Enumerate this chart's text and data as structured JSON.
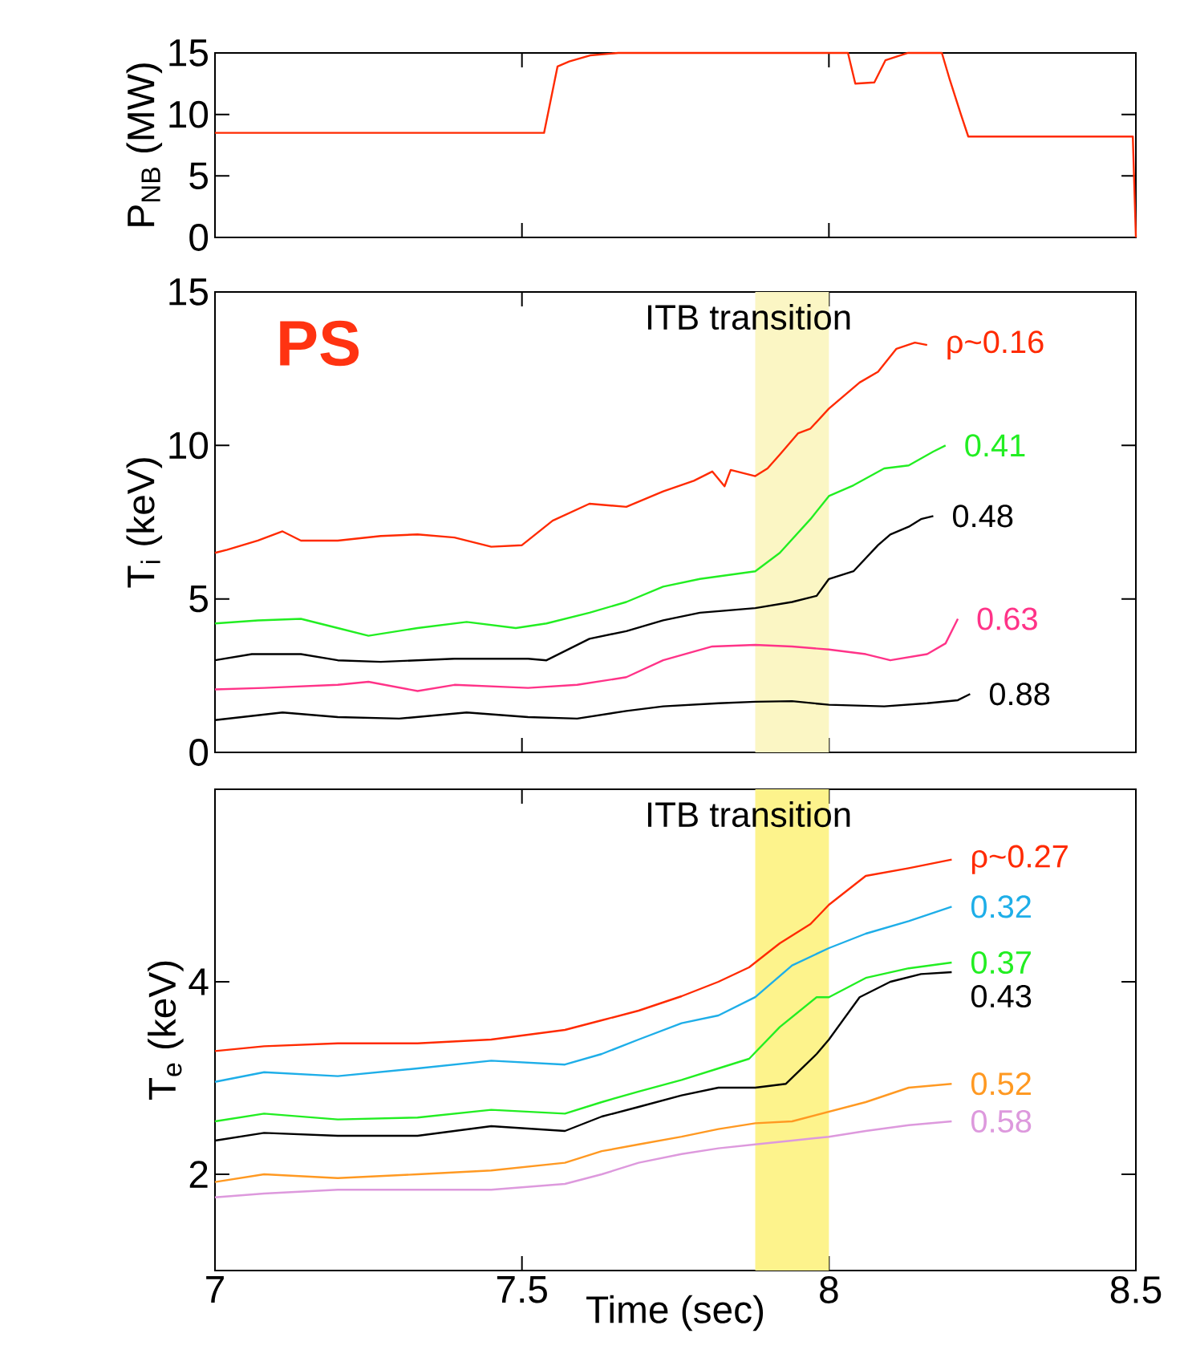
{
  "chart_data": [
    {
      "type": "line",
      "ylabel": "P$_{NB}$ (MW)",
      "xlim": [
        7,
        8.5
      ],
      "xticks": [
        7,
        7.5,
        8,
        8.5
      ],
      "ylim": [
        0,
        15
      ],
      "yticks": [
        0,
        5,
        10,
        15
      ],
      "tick_labels": "y",
      "series": [
        {
          "color": "#ff2a00",
          "x": [
            7.0,
            7.536,
            7.558,
            7.577,
            7.611,
            7.657,
            8.031,
            8.043,
            8.074,
            8.092,
            8.129,
            8.184,
            8.197,
            8.215,
            8.227,
            8.495,
            8.5
          ],
          "values": [
            8.5,
            8.5,
            13.9,
            14.3,
            14.8,
            15,
            15,
            12.5,
            12.6,
            14.4,
            15,
            15,
            12.8,
            10,
            8.2,
            8.2,
            0
          ]
        }
      ]
    },
    {
      "type": "line",
      "ylabel": "T$_{i}$ (keV)",
      "xlim": [
        7,
        8.5
      ],
      "xticks": [
        7,
        7.5,
        8,
        8.5
      ],
      "ylim": [
        0,
        15
      ],
      "yticks": [
        0,
        5,
        10,
        15
      ],
      "tick_labels": "y",
      "annotations": [
        "PS"
      ],
      "bands": [
        {
          "axis": "x",
          "from": 7.88,
          "to": 8.0,
          "label": "ITB transition",
          "color": "#fbf6c4"
        }
      ],
      "series": [
        {
          "name": "ρ~0.16",
          "color": "#ff2a00",
          "x": [
            7.0,
            7.02,
            7.07,
            7.11,
            7.14,
            7.2,
            7.27,
            7.33,
            7.39,
            7.45,
            7.5,
            7.55,
            7.61,
            7.67,
            7.73,
            7.78,
            7.81,
            7.83,
            7.84,
            7.88,
            7.9,
            7.92,
            7.95,
            7.97,
            8.0,
            8.05,
            8.08,
            8.11,
            8.14,
            8.16
          ],
          "values": [
            6.5,
            6.6,
            6.9,
            7.2,
            6.9,
            6.9,
            7.05,
            7.1,
            7.0,
            6.7,
            6.75,
            7.55,
            8.1,
            8.0,
            8.5,
            8.85,
            9.15,
            8.67,
            9.2,
            9.0,
            9.25,
            9.7,
            10.4,
            10.55,
            11.2,
            12.05,
            12.4,
            13.15,
            13.35,
            13.27
          ]
        },
        {
          "name": "0.41",
          "color": "#22ee22",
          "x": [
            7.0,
            7.07,
            7.14,
            7.2,
            7.25,
            7.33,
            7.41,
            7.49,
            7.54,
            7.61,
            7.67,
            7.73,
            7.79,
            7.88,
            7.92,
            7.97,
            8.0,
            8.04,
            8.09,
            8.13,
            8.17,
            8.19
          ],
          "values": [
            4.2,
            4.3,
            4.35,
            4.05,
            3.8,
            4.05,
            4.25,
            4.05,
            4.2,
            4.55,
            4.9,
            5.4,
            5.65,
            5.9,
            6.5,
            7.6,
            8.35,
            8.7,
            9.25,
            9.35,
            9.8,
            10.0
          ]
        },
        {
          "name": "0.48",
          "color": "#000000",
          "x": [
            7.0,
            7.06,
            7.14,
            7.2,
            7.27,
            7.39,
            7.51,
            7.54,
            7.61,
            7.67,
            7.73,
            7.79,
            7.88,
            7.94,
            7.98,
            8.0,
            8.04,
            8.08,
            8.1,
            8.13,
            8.15,
            8.17
          ],
          "values": [
            3.0,
            3.2,
            3.2,
            3.0,
            2.95,
            3.05,
            3.05,
            3.0,
            3.7,
            3.95,
            4.3,
            4.55,
            4.7,
            4.9,
            5.1,
            5.65,
            5.9,
            6.75,
            7.1,
            7.35,
            7.6,
            7.7
          ]
        },
        {
          "name": "0.63",
          "color": "#ff3388",
          "x": [
            7.0,
            7.08,
            7.2,
            7.25,
            7.33,
            7.39,
            7.51,
            7.59,
            7.67,
            7.73,
            7.81,
            7.88,
            7.94,
            8.0,
            8.06,
            8.1,
            8.16,
            8.19,
            8.21
          ],
          "values": [
            2.05,
            2.1,
            2.2,
            2.3,
            2.0,
            2.2,
            2.1,
            2.2,
            2.45,
            3.0,
            3.45,
            3.5,
            3.45,
            3.35,
            3.2,
            3.0,
            3.2,
            3.55,
            4.35
          ]
        },
        {
          "name": "0.88",
          "color": "#000000",
          "x": [
            7.0,
            7.11,
            7.2,
            7.3,
            7.41,
            7.51,
            7.59,
            7.67,
            7.73,
            7.82,
            7.88,
            7.94,
            8.0,
            8.09,
            8.16,
            8.21,
            8.23
          ],
          "values": [
            1.05,
            1.3,
            1.15,
            1.1,
            1.3,
            1.15,
            1.1,
            1.35,
            1.5,
            1.6,
            1.65,
            1.67,
            1.55,
            1.5,
            1.6,
            1.7,
            1.9
          ]
        }
      ]
    },
    {
      "type": "line",
      "xlabel": "Time (sec)",
      "ylabel": "T$_{e}$ (keV)",
      "xlim": [
        7,
        8.5
      ],
      "xticks": [
        7,
        7.5,
        8,
        8.5
      ],
      "ylim": [
        1,
        6
      ],
      "yticks": [
        2,
        4
      ],
      "bands": [
        {
          "axis": "x",
          "from": 7.88,
          "to": 8.0,
          "label": "ITB transition",
          "color": "#fdf38c"
        }
      ],
      "series": [
        {
          "name": "ρ~0.27",
          "color": "#ff2a00",
          "x": [
            7.0,
            7.08,
            7.2,
            7.33,
            7.45,
            7.57,
            7.63,
            7.69,
            7.76,
            7.82,
            7.87,
            7.92,
            7.97,
            8.0,
            8.06,
            8.13,
            8.2
          ],
          "values": [
            3.28,
            3.33,
            3.36,
            3.36,
            3.4,
            3.5,
            3.6,
            3.7,
            3.85,
            4.0,
            4.15,
            4.4,
            4.6,
            4.8,
            5.1,
            5.18,
            5.27
          ]
        },
        {
          "name": "0.32",
          "color": "#1eaee8",
          "x": [
            7.0,
            7.08,
            7.2,
            7.33,
            7.45,
            7.57,
            7.63,
            7.69,
            7.76,
            7.82,
            7.88,
            7.94,
            8.0,
            8.06,
            8.13,
            8.2
          ],
          "values": [
            2.96,
            3.06,
            3.02,
            3.1,
            3.18,
            3.14,
            3.25,
            3.4,
            3.57,
            3.65,
            3.84,
            4.17,
            4.35,
            4.5,
            4.63,
            4.78
          ]
        },
        {
          "name": "0.37",
          "color": "#22ee22",
          "x": [
            7.0,
            7.08,
            7.2,
            7.33,
            7.45,
            7.57,
            7.63,
            7.69,
            7.76,
            7.82,
            7.87,
            7.92,
            7.98,
            8.0,
            8.06,
            8.13,
            8.2
          ],
          "values": [
            2.55,
            2.63,
            2.57,
            2.59,
            2.67,
            2.63,
            2.75,
            2.86,
            2.98,
            3.1,
            3.2,
            3.53,
            3.84,
            3.84,
            4.04,
            4.14,
            4.2
          ]
        },
        {
          "name": "0.43",
          "color": "#000000",
          "x": [
            7.0,
            7.08,
            7.2,
            7.33,
            7.45,
            7.57,
            7.63,
            7.69,
            7.76,
            7.82,
            7.88,
            7.93,
            7.98,
            8.0,
            8.05,
            8.1,
            8.15,
            8.2
          ],
          "values": [
            2.35,
            2.43,
            2.4,
            2.4,
            2.5,
            2.45,
            2.6,
            2.7,
            2.82,
            2.9,
            2.9,
            2.94,
            3.25,
            3.4,
            3.84,
            4.0,
            4.08,
            4.1
          ]
        },
        {
          "name": "0.52",
          "color": "#ff9922",
          "x": [
            7.0,
            7.08,
            7.2,
            7.33,
            7.45,
            7.57,
            7.63,
            7.69,
            7.76,
            7.82,
            7.88,
            7.94,
            8.0,
            8.06,
            8.13,
            8.2
          ],
          "values": [
            1.92,
            2.0,
            1.96,
            2.0,
            2.04,
            2.12,
            2.24,
            2.31,
            2.39,
            2.47,
            2.53,
            2.55,
            2.65,
            2.75,
            2.9,
            2.94
          ]
        },
        {
          "name": "0.58",
          "color": "#dd99dd",
          "x": [
            7.0,
            7.08,
            7.2,
            7.33,
            7.45,
            7.57,
            7.63,
            7.69,
            7.76,
            7.82,
            7.88,
            7.94,
            8.0,
            8.06,
            8.13,
            8.2
          ],
          "values": [
            1.76,
            1.8,
            1.84,
            1.84,
            1.84,
            1.9,
            2.0,
            2.12,
            2.21,
            2.27,
            2.31,
            2.35,
            2.39,
            2.45,
            2.51,
            2.55
          ]
        }
      ]
    }
  ]
}
